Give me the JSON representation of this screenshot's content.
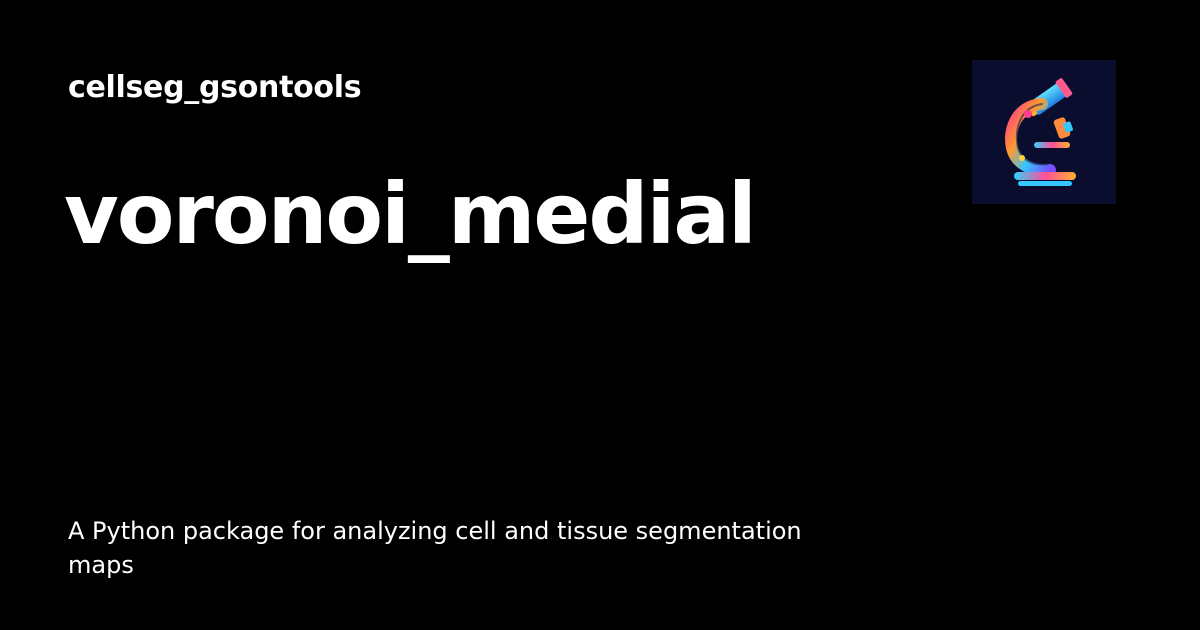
{
  "header": {
    "site_name": "cellseg_gsontools"
  },
  "page": {
    "title": "voronoi_medial",
    "description": "A Python package for analyzing cell and tissue segmentation maps"
  },
  "logo": {
    "icon": "microscope-icon",
    "background": "#0b0d2e"
  },
  "colors": {
    "background": "#000000",
    "text": "#ffffff"
  }
}
